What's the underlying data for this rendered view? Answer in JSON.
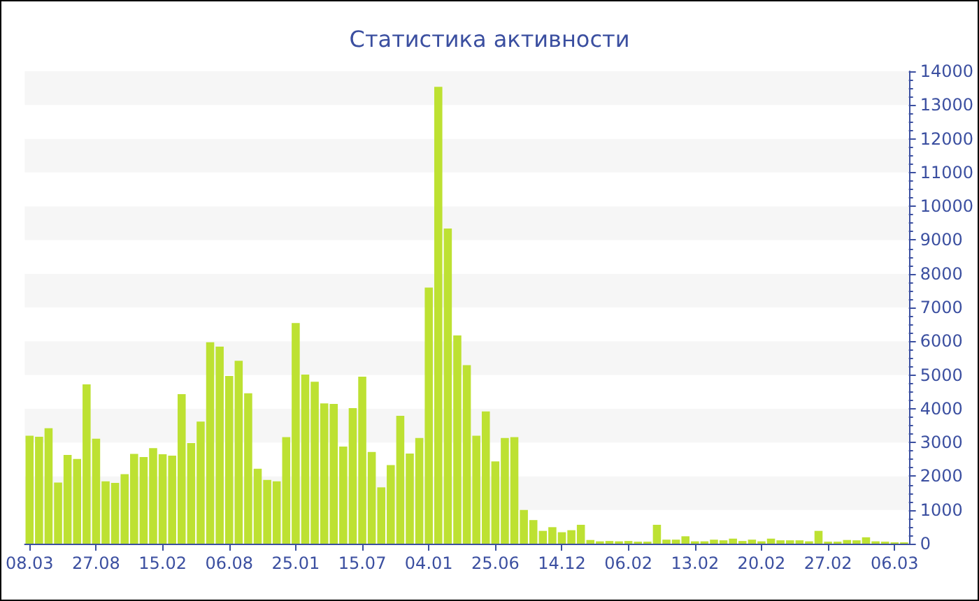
{
  "chart_data": {
    "type": "bar",
    "title": "Статистика активности",
    "categories": [
      "08.03",
      null,
      null,
      null,
      null,
      null,
      null,
      "27.08",
      null,
      null,
      null,
      null,
      null,
      null,
      "15.02",
      null,
      null,
      null,
      null,
      null,
      null,
      "06.08",
      null,
      null,
      null,
      null,
      null,
      null,
      "25.01",
      null,
      null,
      null,
      null,
      null,
      null,
      "15.07",
      null,
      null,
      null,
      null,
      null,
      null,
      "04.01",
      null,
      null,
      null,
      null,
      null,
      null,
      "25.06",
      null,
      null,
      null,
      null,
      null,
      null,
      "14.12",
      null,
      null,
      null,
      null,
      null,
      null,
      "06.02",
      null,
      null,
      null,
      null,
      null,
      null,
      "13.02",
      null,
      null,
      null,
      null,
      null,
      null,
      "20.02",
      null,
      null,
      null,
      null,
      null,
      null,
      "27.02",
      null,
      null,
      null,
      null,
      null,
      null,
      "06.03",
      null
    ],
    "values": [
      3200,
      3170,
      3420,
      1810,
      2630,
      2510,
      4720,
      3110,
      1850,
      1800,
      2060,
      2660,
      2570,
      2830,
      2650,
      2610,
      4430,
      2980,
      3620,
      5970,
      5840,
      4970,
      5420,
      4460,
      2220,
      1890,
      1850,
      3160,
      6540,
      5010,
      4800,
      4160,
      4140,
      2880,
      4020,
      4950,
      2720,
      1670,
      2330,
      3790,
      2670,
      3130,
      7590,
      13540,
      9340,
      6170,
      5290,
      3200,
      3920,
      2440,
      3130,
      3160,
      1000,
      700,
      380,
      490,
      340,
      400,
      560,
      110,
      70,
      80,
      70,
      80,
      60,
      60,
      560,
      120,
      120,
      220,
      70,
      70,
      120,
      100,
      150,
      80,
      120,
      70,
      150,
      100,
      100,
      100,
      70,
      380,
      60,
      60,
      110,
      100,
      190,
      70,
      60,
      40,
      40
    ],
    "color": "#bde132",
    "ylim": [
      0,
      14000
    ],
    "yticks": [
      0,
      1000,
      2000,
      3000,
      4000,
      5000,
      6000,
      7000,
      8000,
      9000,
      10000,
      11000,
      12000,
      13000,
      14000
    ]
  }
}
